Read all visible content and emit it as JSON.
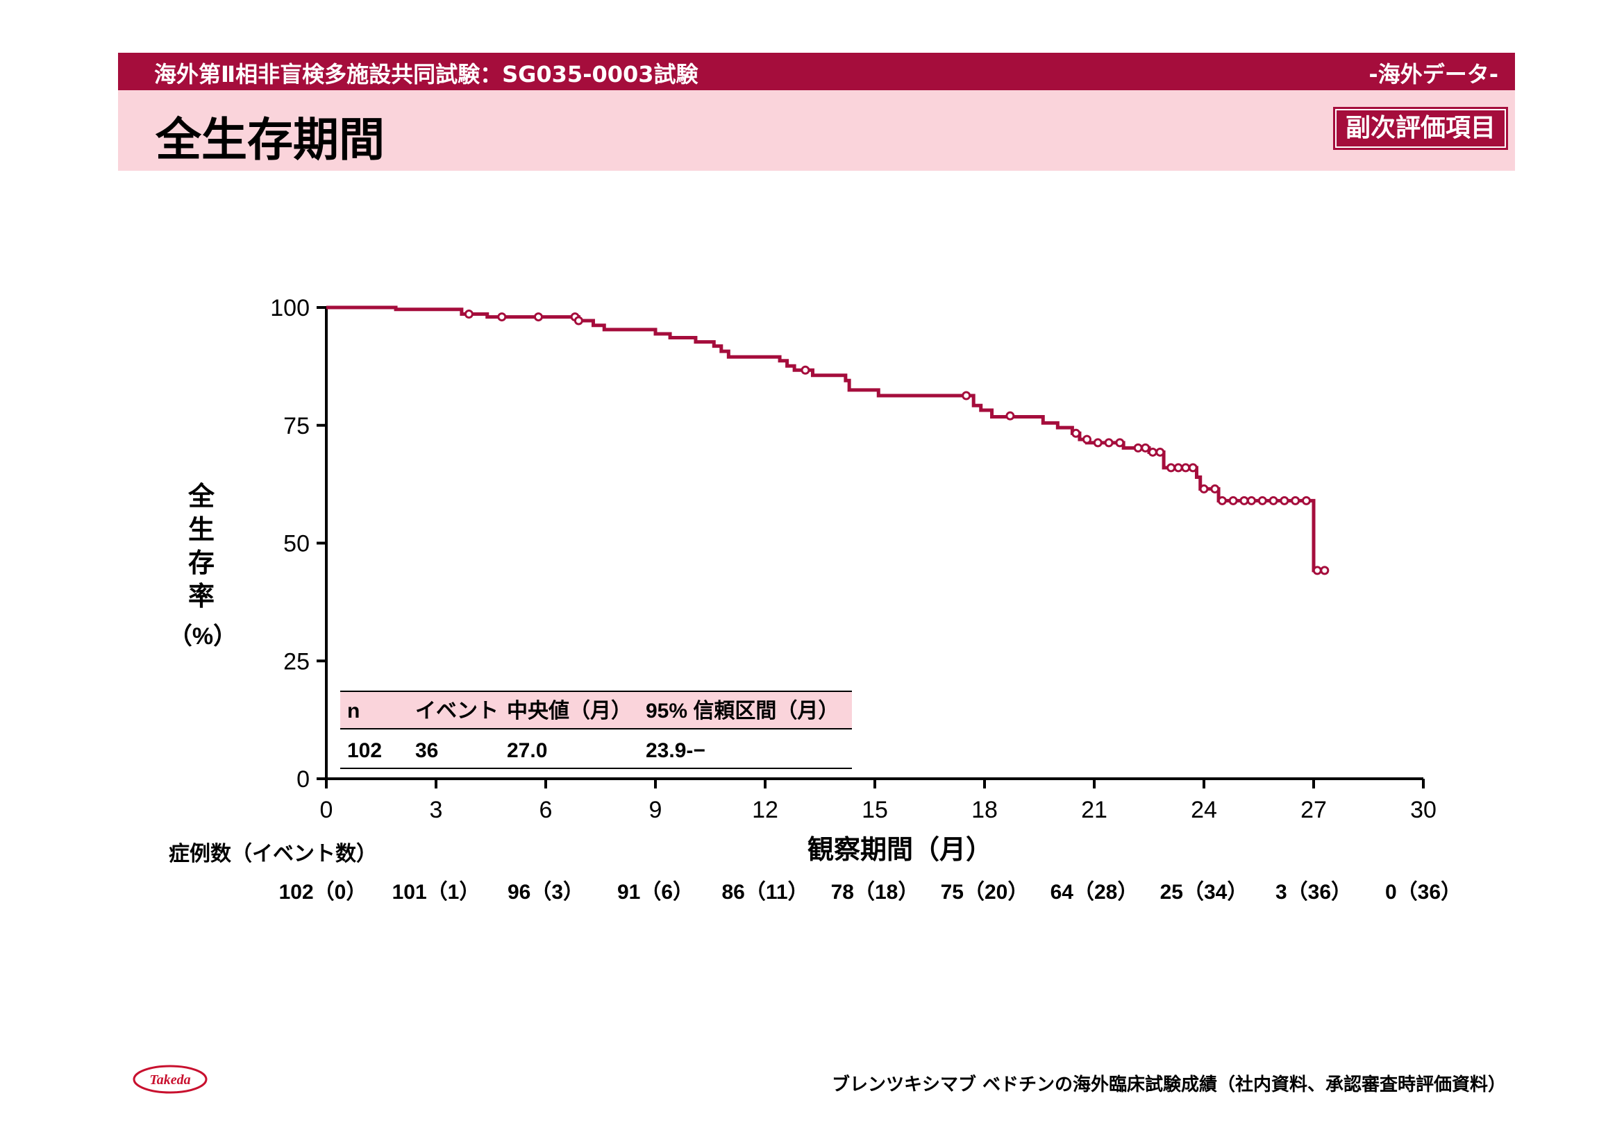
{
  "header": {
    "study": "海外第Ⅱ相非盲検多施設共同試験：SG035-0003試験",
    "region": "-海外データ-",
    "title": "全生存期間",
    "tag": "副次評価項目"
  },
  "footer": {
    "source": "ブレンツキシマブ ベドチンの海外臨床試験成績（社内資料、承認審査時評価資料）"
  },
  "logo": {
    "text": "Takeda",
    "color": "#c8102e"
  },
  "colors": {
    "accent": "#a50d3c",
    "band": "#fad4db",
    "curve": "#a50d3c"
  },
  "chart_data": {
    "type": "line",
    "step": true,
    "ylabel_chars": [
      "全",
      "生",
      "存",
      "率"
    ],
    "ylabel_unit": "（%）",
    "xlabel": "観察期間（月）",
    "xlim": [
      0,
      30
    ],
    "ylim": [
      0,
      100
    ],
    "x_ticks": [
      "0",
      "3",
      "6",
      "9",
      "12",
      "15",
      "18",
      "21",
      "24",
      "27",
      "30"
    ],
    "y_ticks": [
      "0",
      "25",
      "50",
      "75",
      "100"
    ],
    "series": [
      {
        "color": "#a50d3c",
        "steps": [
          [
            0,
            100
          ],
          [
            1.9,
            99.6
          ],
          [
            3.7,
            98.6
          ],
          [
            4.4,
            98
          ],
          [
            6.9,
            97.2
          ],
          [
            7.3,
            96.2
          ],
          [
            7.6,
            95.3
          ],
          [
            9.0,
            94.4
          ],
          [
            9.4,
            93.6
          ],
          [
            10.1,
            92.7
          ],
          [
            10.6,
            91.8
          ],
          [
            10.8,
            90.7
          ],
          [
            11.0,
            89.5
          ],
          [
            12.4,
            88.7
          ],
          [
            12.6,
            87.6
          ],
          [
            12.8,
            86.7
          ],
          [
            13.3,
            85.6
          ],
          [
            14.2,
            84.5
          ],
          [
            14.3,
            82.5
          ],
          [
            15.1,
            81.3
          ],
          [
            17.7,
            79.2
          ],
          [
            17.9,
            78.2
          ],
          [
            18.2,
            76.8
          ],
          [
            19.6,
            75.5
          ],
          [
            20.0,
            74.5
          ],
          [
            20.4,
            73.3
          ],
          [
            20.6,
            72
          ],
          [
            20.8,
            71.3
          ],
          [
            21.8,
            70.2
          ],
          [
            22.5,
            69.3
          ],
          [
            22.9,
            66
          ],
          [
            23.8,
            64
          ],
          [
            23.9,
            61.5
          ],
          [
            24.4,
            59
          ],
          [
            27.0,
            44.2
          ],
          [
            27.3,
            44.2
          ]
        ],
        "censored": [
          [
            3.9,
            98.6
          ],
          [
            4.8,
            98
          ],
          [
            5.8,
            98
          ],
          [
            6.8,
            98
          ],
          [
            6.9,
            97.2
          ],
          [
            13.1,
            86.7
          ],
          [
            17.5,
            81.3
          ],
          [
            18.7,
            77
          ],
          [
            20.5,
            73.3
          ],
          [
            20.8,
            72
          ],
          [
            21.1,
            71.3
          ],
          [
            21.4,
            71.3
          ],
          [
            21.7,
            71.3
          ],
          [
            22.2,
            70.2
          ],
          [
            22.4,
            70.2
          ],
          [
            22.6,
            69.3
          ],
          [
            22.8,
            69.3
          ],
          [
            23.1,
            66
          ],
          [
            23.3,
            66
          ],
          [
            23.5,
            66
          ],
          [
            23.7,
            66
          ],
          [
            24.0,
            61.5
          ],
          [
            24.3,
            61.5
          ],
          [
            24.5,
            59
          ],
          [
            24.8,
            59
          ],
          [
            25.1,
            59
          ],
          [
            25.3,
            59
          ],
          [
            25.6,
            59
          ],
          [
            25.9,
            59
          ],
          [
            26.2,
            59
          ],
          [
            26.5,
            59
          ],
          [
            26.8,
            59
          ],
          [
            27.1,
            44.2
          ],
          [
            27.3,
            44.2
          ]
        ]
      }
    ],
    "risk_table": {
      "label": "症例数（イベント数）",
      "values": [
        "102（0）",
        "101（1）",
        "96（3）",
        "91（6）",
        "86（11）",
        "78（18）",
        "75（20）",
        "64（28）",
        "25（34）",
        "3（36）",
        "0（36）"
      ]
    },
    "summary_table": {
      "headers": [
        "n",
        "イベント",
        "中央値（月）",
        "95% 信頼区間（月）"
      ],
      "row": [
        "102",
        "36",
        "27.0",
        "23.9-−"
      ]
    }
  }
}
